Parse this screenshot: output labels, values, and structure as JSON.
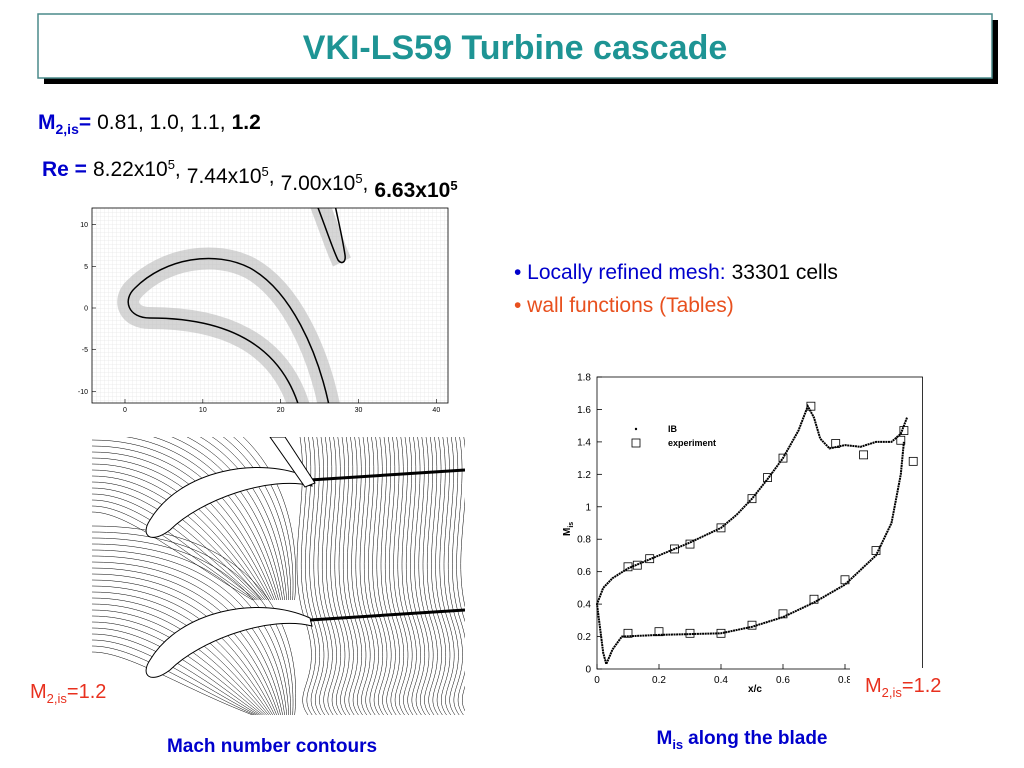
{
  "title": "VKI-LS59 Turbine cascade",
  "mach_line": {
    "symbol": "M",
    "subscript": "2,is",
    "equals": "=",
    "values": "0.81, 1.0, 1.1,",
    "highlight": "1.2"
  },
  "re_line": {
    "label": "Re =",
    "items": [
      {
        "text": "8.22x10",
        "sup": "5",
        "sep": ","
      },
      {
        "text": "7.44x10",
        "sup": "5",
        "sep": ","
      },
      {
        "text": "7.00x10",
        "sup": "5",
        "sep": ","
      },
      {
        "text": "6.63x10",
        "sup": "5"
      }
    ]
  },
  "bullets": [
    {
      "label": "• Locally refined mesh:",
      "value": "33301 cells"
    },
    {
      "label": "• wall functions (Tables)"
    }
  ],
  "mesh_plot": {
    "xlim": [
      -4.24,
      41.5
    ],
    "ylim": [
      -11.4,
      12
    ],
    "xticks": [
      0,
      10,
      20,
      30,
      40
    ],
    "yticks": [
      10,
      5,
      0,
      -5,
      -10
    ]
  },
  "contour_caption": "Mach number contours",
  "left_label": {
    "symbol": "M",
    "subscript": "2,is",
    "rest": "=1.2"
  },
  "right_label": {
    "symbol": "M",
    "subscript": "2,is",
    "rest": "=1.2"
  },
  "chart_caption": {
    "symbol": "M",
    "subscript": "is",
    "rest": "along the blade"
  },
  "chart_data": {
    "type": "line",
    "xlabel": "x/c",
    "ylabel": {
      "symbol": "M",
      "subscript": "is"
    },
    "xlim": [
      0,
      1.05
    ],
    "ylim": [
      0,
      1.8
    ],
    "xticks": [
      0,
      0.2,
      0.4,
      0.6,
      0.8
    ],
    "yticks": [
      0,
      0.2,
      0.4,
      0.6,
      0.8,
      1,
      1.2,
      1.4,
      1.6,
      1.8
    ],
    "series": [
      {
        "name": "IB",
        "style": "line",
        "color": "#000000",
        "x": [
          1.0,
          0.98,
          0.95,
          0.9,
          0.85,
          0.8,
          0.75,
          0.72,
          0.7,
          0.68,
          0.65,
          0.6,
          0.55,
          0.5,
          0.45,
          0.4,
          0.3,
          0.2,
          0.1,
          0.05,
          0.02,
          0,
          0.02,
          0.03,
          0.05,
          0.08,
          0.2,
          0.4,
          0.5,
          0.6,
          0.7,
          0.8,
          0.9,
          0.95,
          0.98,
          0.99
        ],
        "values": [
          1.55,
          1.45,
          1.4,
          1.4,
          1.37,
          1.38,
          1.36,
          1.42,
          1.55,
          1.62,
          1.47,
          1.3,
          1.17,
          1.05,
          0.95,
          0.87,
          0.78,
          0.7,
          0.62,
          0.56,
          0.5,
          0.4,
          0.1,
          0.03,
          0.12,
          0.2,
          0.21,
          0.22,
          0.26,
          0.32,
          0.41,
          0.52,
          0.7,
          0.9,
          1.2,
          1.4
        ]
      },
      {
        "name": "experiment",
        "style": "square",
        "color": "#000000",
        "x": [
          0.1,
          0.13,
          0.17,
          0.25,
          0.3,
          0.4,
          0.5,
          0.55,
          0.6,
          0.69,
          0.77,
          0.86,
          0.98,
          0.99,
          1.02,
          0.1,
          0.2,
          0.3,
          0.4,
          0.5,
          0.6,
          0.7,
          0.8,
          0.9
        ],
        "values": [
          0.63,
          0.64,
          0.68,
          0.74,
          0.77,
          0.87,
          1.05,
          1.18,
          1.3,
          1.62,
          1.39,
          1.32,
          1.41,
          1.47,
          1.28,
          0.22,
          0.23,
          0.22,
          0.22,
          0.27,
          0.34,
          0.43,
          0.55,
          0.73
        ]
      }
    ]
  }
}
